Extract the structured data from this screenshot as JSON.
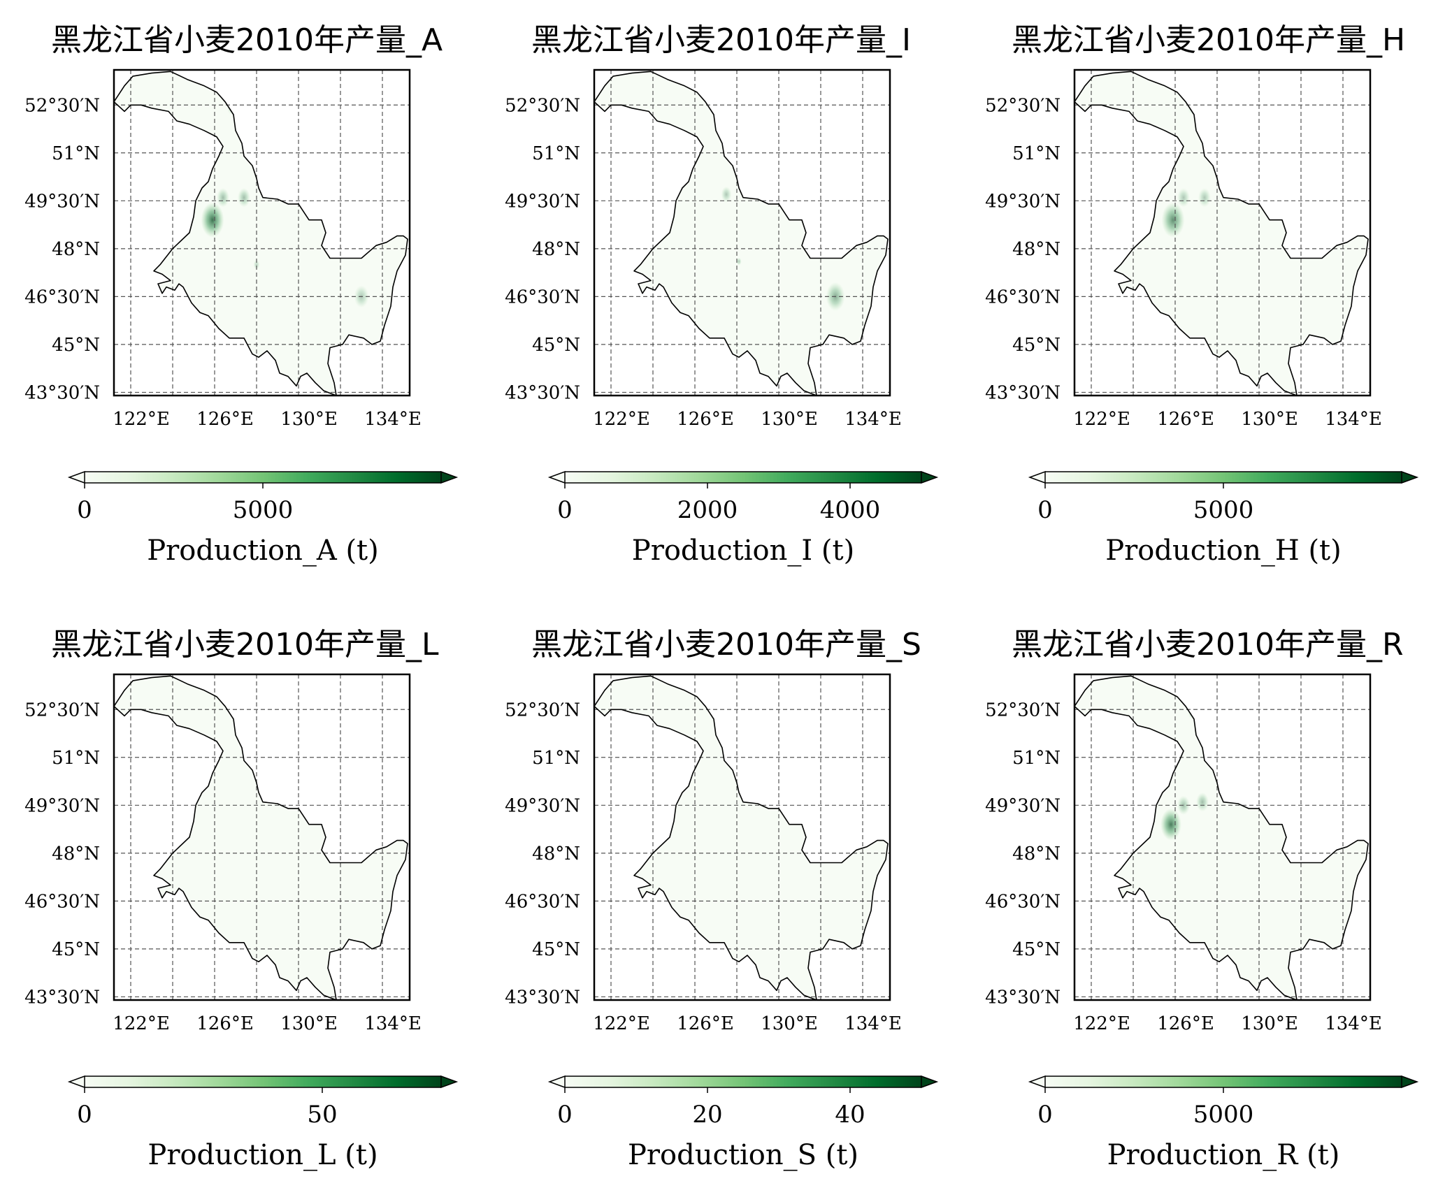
{
  "figure": {
    "panels": [
      {
        "title": "黑龙江省小麦2010年产量_A",
        "colorbar_label": "Production_A (t)",
        "colorbar_max": 10000,
        "colorbar_ticks": [
          {
            "v": 0,
            "label": "0"
          },
          {
            "v": 5000,
            "label": "5000"
          }
        ],
        "hotspots": [
          {
            "lon": 125.4,
            "lat": 48.9,
            "r": 0.55,
            "i": 0.75
          },
          {
            "lon": 125.9,
            "lat": 49.6,
            "r": 0.3,
            "i": 0.35
          },
          {
            "lon": 126.9,
            "lat": 49.6,
            "r": 0.3,
            "i": 0.35
          },
          {
            "lon": 126.3,
            "lat": 52.4,
            "r": 0.2,
            "i": 0.2
          },
          {
            "lon": 132.5,
            "lat": 46.5,
            "r": 0.35,
            "i": 0.3
          },
          {
            "lon": 127.5,
            "lat": 47.5,
            "r": 0.15,
            "i": 0.25
          }
        ]
      },
      {
        "title": "黑龙江省小麦2010年产量_I",
        "colorbar_label": "Production_I (t)",
        "colorbar_max": 5000,
        "colorbar_ticks": [
          {
            "v": 0,
            "label": "0"
          },
          {
            "v": 2000,
            "label": "2000"
          },
          {
            "v": 4000,
            "label": "4000"
          }
        ],
        "hotspots": [
          {
            "lon": 132.2,
            "lat": 46.5,
            "r": 0.45,
            "i": 0.45
          },
          {
            "lon": 127.0,
            "lat": 49.7,
            "r": 0.25,
            "i": 0.3
          },
          {
            "lon": 127.6,
            "lat": 47.6,
            "r": 0.12,
            "i": 0.3
          }
        ]
      },
      {
        "title": "黑龙江省小麦2010年产量_H",
        "colorbar_label": "Production_H (t)",
        "colorbar_max": 10000,
        "colorbar_ticks": [
          {
            "v": 0,
            "label": "0"
          },
          {
            "v": 5000,
            "label": "5000"
          }
        ],
        "hotspots": [
          {
            "lon": 125.4,
            "lat": 48.9,
            "r": 0.55,
            "i": 0.6
          },
          {
            "lon": 125.9,
            "lat": 49.6,
            "r": 0.3,
            "i": 0.3
          },
          {
            "lon": 126.9,
            "lat": 49.6,
            "r": 0.3,
            "i": 0.3
          },
          {
            "lon": 126.3,
            "lat": 52.4,
            "r": 0.2,
            "i": 0.15
          }
        ]
      },
      {
        "title": "黑龙江省小麦2010年产量_L",
        "colorbar_label": "Production_L (t)",
        "colorbar_max": 75,
        "colorbar_ticks": [
          {
            "v": 0,
            "label": "0"
          },
          {
            "v": 50,
            "label": "50"
          }
        ],
        "hotspots": []
      },
      {
        "title": "黑龙江省小麦2010年产量_S",
        "colorbar_label": "Production_S (t)",
        "colorbar_max": 50,
        "colorbar_ticks": [
          {
            "v": 0,
            "label": "0"
          },
          {
            "v": 20,
            "label": "20"
          },
          {
            "v": 40,
            "label": "40"
          }
        ],
        "hotspots": []
      },
      {
        "title": "黑龙江省小麦2010年产量_R",
        "colorbar_label": "Production_R (t)",
        "colorbar_max": 10000,
        "colorbar_ticks": [
          {
            "v": 0,
            "label": "0"
          },
          {
            "v": 5000,
            "label": "5000"
          }
        ],
        "hotspots": [
          {
            "lon": 125.3,
            "lat": 48.9,
            "r": 0.5,
            "i": 0.7
          },
          {
            "lon": 125.9,
            "lat": 49.5,
            "r": 0.3,
            "i": 0.35
          },
          {
            "lon": 126.8,
            "lat": 49.6,
            "r": 0.3,
            "i": 0.35
          },
          {
            "lon": 126.3,
            "lat": 52.4,
            "r": 0.2,
            "i": 0.2
          }
        ]
      }
    ],
    "map": {
      "lon_range": [
        120.7,
        134.8
      ],
      "lat_range": [
        43.4,
        53.6
      ],
      "x_ticks": [
        {
          "v": 122,
          "label": "122°E"
        },
        {
          "v": 126,
          "label": "126°E"
        },
        {
          "v": 130,
          "label": "130°E"
        },
        {
          "v": 134,
          "label": "134°E"
        }
      ],
      "y_ticks": [
        {
          "v": 43.5,
          "label": "43°30′N"
        },
        {
          "v": 45,
          "label": "45°N"
        },
        {
          "v": 46.5,
          "label": "46°30′N"
        },
        {
          "v": 48,
          "label": "48°N"
        },
        {
          "v": 49.5,
          "label": "49°30′N"
        },
        {
          "v": 51,
          "label": "51°N"
        },
        {
          "v": 52.5,
          "label": "52°30′N"
        }
      ],
      "grid_lons": [
        121.5,
        123.5,
        125.5,
        127.5,
        129.5,
        131.5,
        133.5
      ],
      "grid_lats": [
        43.5,
        45,
        46.5,
        48,
        49.5,
        51,
        52.5
      ],
      "colormap": [
        "#f7fcf5",
        "#e5f5e0",
        "#c7e9c0",
        "#a1d99b",
        "#74c476",
        "#41ab5d",
        "#238b45",
        "#006d2c",
        "#00441b"
      ],
      "border": [
        [
          120.7,
          52.6
        ],
        [
          121.2,
          53.1
        ],
        [
          121.6,
          53.4
        ],
        [
          122.5,
          53.5
        ],
        [
          123.4,
          53.55
        ],
        [
          124.2,
          53.3
        ],
        [
          125.0,
          53.1
        ],
        [
          125.6,
          52.9
        ],
        [
          126.0,
          52.6
        ],
        [
          126.4,
          52.2
        ],
        [
          126.5,
          51.7
        ],
        [
          126.8,
          51.3
        ],
        [
          126.9,
          50.9
        ],
        [
          127.3,
          50.6
        ],
        [
          127.5,
          50.2
        ],
        [
          127.6,
          49.9
        ],
        [
          127.8,
          49.6
        ],
        [
          128.5,
          49.55
        ],
        [
          129.0,
          49.4
        ],
        [
          129.5,
          49.4
        ],
        [
          130.0,
          48.9
        ],
        [
          130.6,
          48.9
        ],
        [
          130.8,
          48.5
        ],
        [
          130.6,
          48.1
        ],
        [
          131.0,
          47.7
        ],
        [
          131.6,
          47.7
        ],
        [
          132.5,
          47.7
        ],
        [
          133.2,
          48.1
        ],
        [
          133.7,
          48.2
        ],
        [
          134.2,
          48.4
        ],
        [
          134.5,
          48.4
        ],
        [
          134.7,
          48.3
        ],
        [
          134.6,
          47.8
        ],
        [
          134.2,
          47.3
        ],
        [
          134.0,
          46.8
        ],
        [
          133.9,
          46.2
        ],
        [
          133.6,
          45.6
        ],
        [
          133.4,
          45.1
        ],
        [
          133.0,
          45.0
        ],
        [
          132.6,
          45.2
        ],
        [
          131.9,
          45.3
        ],
        [
          131.6,
          45.0
        ],
        [
          131.0,
          44.9
        ],
        [
          130.9,
          44.4
        ],
        [
          131.2,
          43.8
        ],
        [
          131.3,
          43.4
        ],
        [
          130.7,
          43.55
        ],
        [
          130.3,
          43.8
        ],
        [
          129.9,
          44.1
        ],
        [
          129.6,
          44.0
        ],
        [
          129.4,
          43.7
        ],
        [
          129.0,
          44.0
        ],
        [
          128.6,
          44.1
        ],
        [
          128.4,
          44.5
        ],
        [
          128.0,
          44.8
        ],
        [
          127.6,
          44.6
        ],
        [
          127.3,
          44.7
        ],
        [
          126.9,
          45.2
        ],
        [
          126.5,
          45.2
        ],
        [
          126.2,
          45.2
        ],
        [
          125.7,
          45.5
        ],
        [
          125.2,
          45.9
        ],
        [
          124.8,
          46.0
        ],
        [
          124.4,
          46.3
        ],
        [
          124.0,
          46.8
        ],
        [
          123.8,
          46.9
        ],
        [
          123.6,
          46.7
        ],
        [
          123.2,
          46.8
        ],
        [
          123.0,
          46.6
        ],
        [
          122.8,
          46.9
        ],
        [
          123.4,
          47.0
        ],
        [
          123.0,
          47.2
        ],
        [
          122.6,
          47.3
        ],
        [
          122.9,
          47.5
        ],
        [
          123.5,
          48.0
        ],
        [
          124.3,
          48.5
        ],
        [
          124.5,
          49.0
        ],
        [
          124.6,
          49.5
        ],
        [
          124.9,
          49.9
        ],
        [
          125.2,
          50.1
        ],
        [
          125.4,
          50.5
        ],
        [
          125.7,
          50.9
        ],
        [
          125.9,
          51.2
        ],
        [
          125.6,
          51.5
        ],
        [
          125.0,
          51.7
        ],
        [
          124.3,
          51.9
        ],
        [
          123.7,
          52.0
        ],
        [
          123.3,
          52.3
        ],
        [
          122.5,
          52.4
        ],
        [
          122.0,
          52.5
        ],
        [
          121.5,
          52.5
        ],
        [
          121.2,
          52.3
        ],
        [
          120.7,
          52.6
        ]
      ]
    }
  }
}
